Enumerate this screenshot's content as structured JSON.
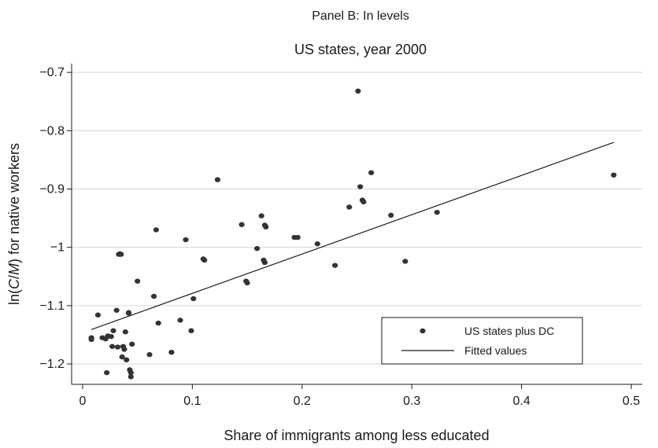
{
  "chart_data": {
    "type": "scatter",
    "title": "US states, year 2000",
    "supertitle": "Panel B: In levels",
    "xlabel": "Share of immigrants among less educated",
    "ylabel": "ln(C/M) for native workers",
    "ylabel_parts": {
      "pre": "ln(",
      "italic1": "C",
      "slash": "/",
      "italic2": "M",
      "post": ") for native workers"
    },
    "xlim": [
      -0.01,
      0.51
    ],
    "ylim": [
      -1.235,
      -0.685
    ],
    "xticks": [
      0,
      0.1,
      0.2,
      0.3,
      0.4,
      0.5
    ],
    "xtick_labels": [
      "0",
      "0.1",
      "0.2",
      "0.3",
      "0.4",
      "0.5"
    ],
    "yticks": [
      -0.7,
      -0.8,
      -0.9,
      -1,
      -1.1,
      -1.2
    ],
    "ytick_labels": [
      "−0.7",
      "−0.8",
      "−0.9",
      "−1",
      "−1.1",
      "−1.2"
    ],
    "grid": "horizontal",
    "legend": {
      "position": "bottom-right",
      "entries": [
        "US states plus DC",
        "Fitted values"
      ]
    },
    "series": [
      {
        "name": "US states plus DC",
        "kind": "scatter",
        "color": "#333333",
        "points": [
          [
            0.008,
            -1.155
          ],
          [
            0.008,
            -1.158
          ],
          [
            0.014,
            -1.116
          ],
          [
            0.018,
            -1.155
          ],
          [
            0.021,
            -1.157
          ],
          [
            0.022,
            -1.215
          ],
          [
            0.023,
            -1.152
          ],
          [
            0.026,
            -1.153
          ],
          [
            0.027,
            -1.17
          ],
          [
            0.028,
            -1.143
          ],
          [
            0.031,
            -1.108
          ],
          [
            0.032,
            -1.171
          ],
          [
            0.033,
            -1.012
          ],
          [
            0.034,
            -1.011
          ],
          [
            0.035,
            -1.012
          ],
          [
            0.036,
            -1.188
          ],
          [
            0.037,
            -1.17
          ],
          [
            0.038,
            -1.175
          ],
          [
            0.039,
            -1.145
          ],
          [
            0.04,
            -1.193
          ],
          [
            0.042,
            -1.112
          ],
          [
            0.042,
            -1.113
          ],
          [
            0.043,
            -1.21
          ],
          [
            0.044,
            -1.215
          ],
          [
            0.044,
            -1.222
          ],
          [
            0.045,
            -1.166
          ],
          [
            0.05,
            -1.058
          ],
          [
            0.061,
            -1.184
          ],
          [
            0.065,
            -1.084
          ],
          [
            0.067,
            -0.97
          ],
          [
            0.069,
            -1.13
          ],
          [
            0.081,
            -1.18
          ],
          [
            0.089,
            -1.125
          ],
          [
            0.094,
            -0.987
          ],
          [
            0.099,
            -1.143
          ],
          [
            0.101,
            -1.088
          ],
          [
            0.11,
            -1.02
          ],
          [
            0.111,
            -1.022
          ],
          [
            0.123,
            -0.884
          ],
          [
            0.145,
            -0.961
          ],
          [
            0.149,
            -1.058
          ],
          [
            0.15,
            -1.061
          ],
          [
            0.159,
            -1.002
          ],
          [
            0.163,
            -0.946
          ],
          [
            0.165,
            -1.022
          ],
          [
            0.166,
            -1.026
          ],
          [
            0.166,
            -0.962
          ],
          [
            0.167,
            -0.965
          ],
          [
            0.193,
            -0.983
          ],
          [
            0.196,
            -0.983
          ],
          [
            0.214,
            -0.994
          ],
          [
            0.23,
            -1.031
          ],
          [
            0.243,
            -0.931
          ],
          [
            0.251,
            -0.732
          ],
          [
            0.253,
            -0.896
          ],
          [
            0.255,
            -0.919
          ],
          [
            0.256,
            -0.922
          ],
          [
            0.263,
            -0.872
          ],
          [
            0.281,
            -0.945
          ],
          [
            0.294,
            -1.024
          ],
          [
            0.323,
            -0.94
          ],
          [
            0.484,
            -0.876
          ]
        ]
      },
      {
        "name": "Fitted values",
        "kind": "line",
        "color": "#1a1a1a",
        "points": [
          [
            0.008,
            -1.141
          ],
          [
            0.484,
            -0.82
          ]
        ]
      }
    ]
  }
}
